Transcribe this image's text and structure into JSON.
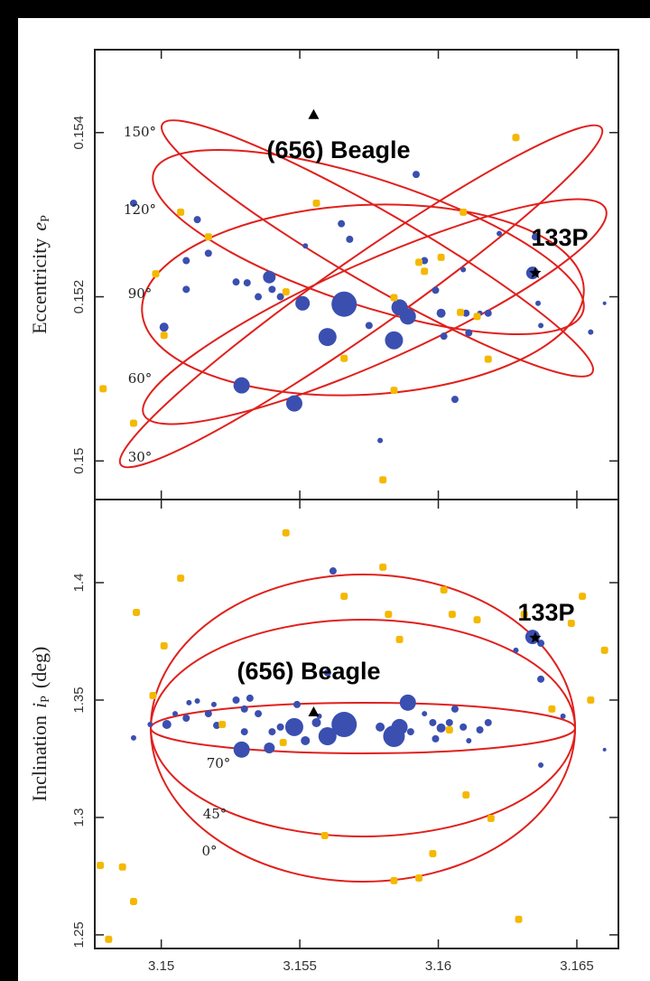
{
  "chart_data": [
    {
      "type": "scatter",
      "xlim": [
        3.1476,
        3.1665
      ],
      "ylim": [
        0.14953,
        0.15501
      ],
      "xticks": [
        3.15,
        3.155,
        3.16,
        3.165
      ],
      "show_xtick_labels": false,
      "yticks": [
        0.15,
        0.152,
        0.154
      ],
      "y_label": [
        "Eccentricity",
        "e",
        "P"
      ],
      "series": [
        {
          "color": "#3a4fb0",
          "x": [
            3.149,
            3.1501,
            3.1509,
            3.1509,
            3.1513,
            3.1517,
            3.1527,
            3.1529,
            3.1531,
            3.1535,
            3.1539,
            3.154,
            3.1543,
            3.1548,
            3.1551,
            3.1552,
            3.156,
            3.1565,
            3.1566,
            3.1568,
            3.1575,
            3.1579,
            3.1584,
            3.1586,
            3.1589,
            3.1592,
            3.1595,
            3.1599,
            3.1601,
            3.1602,
            3.1606,
            3.1609,
            3.161,
            3.1611,
            3.1615,
            3.1618,
            3.1622,
            3.1628,
            3.1634,
            3.1635,
            3.1636,
            3.1637,
            3.1655,
            3.166
          ],
          "values": [
            0.15314,
            0.15163,
            0.15244,
            0.15209,
            0.15294,
            0.15253,
            0.15218,
            0.15092,
            0.15217,
            0.152,
            0.15224,
            0.15209,
            0.152,
            0.1507,
            0.15192,
            0.15262,
            0.15151,
            0.15289,
            0.15191,
            0.1527,
            0.15165,
            0.15025,
            0.15147,
            0.15187,
            0.15176,
            0.15349,
            0.15244,
            0.15208,
            0.1518,
            0.15152,
            0.15075,
            0.15233,
            0.1518,
            0.15156,
            0.1518,
            0.1518,
            0.15277,
            0.15394,
            0.15229,
            0.15273,
            0.15192,
            0.15165,
            0.15157,
            0.15192
          ],
          "sizes": [
            4,
            5,
            4,
            4,
            4,
            4,
            4,
            9,
            4,
            4,
            7,
            4,
            4,
            9,
            8,
            3,
            10,
            4,
            14,
            4,
            4,
            3,
            10,
            9,
            9,
            4,
            4,
            4,
            5,
            4,
            4,
            3,
            4,
            4,
            3,
            4,
            3,
            4,
            7,
            4,
            3,
            3,
            3,
            2
          ]
        },
        {
          "color": "#f5b800",
          "x": [
            3.1479,
            3.149,
            3.1498,
            3.1501,
            3.1507,
            3.1517,
            3.1545,
            3.1556,
            3.1566,
            3.158,
            3.1584,
            3.1584,
            3.1593,
            3.1595,
            3.1601,
            3.1608,
            3.1609,
            3.1614,
            3.1618,
            3.1628
          ],
          "values": [
            0.15088,
            0.15046,
            0.15228,
            0.15153,
            0.15303,
            0.15273,
            0.15206,
            0.15314,
            0.15125,
            0.14977,
            0.15199,
            0.15086,
            0.15242,
            0.15231,
            0.15248,
            0.15181,
            0.15303,
            0.15176,
            0.15124,
            0.15394
          ]
        }
      ],
      "markers": [
        {
          "label": "(656) Beagle",
          "shape": "triangle",
          "x": 3.1555,
          "y": 0.15422
        },
        {
          "label": "133P",
          "shape": "star",
          "x": 3.1635,
          "y": 0.15229
        }
      ],
      "annotations": [
        "150°",
        "120°",
        "90°",
        "60°",
        "30°"
      ]
    },
    {
      "type": "scatter",
      "xlim": [
        3.1476,
        3.1665
      ],
      "ylim": [
        1.2442,
        1.4354
      ],
      "xticks": [
        3.15,
        3.155,
        3.16,
        3.165
      ],
      "show_xtick_labels": true,
      "yticks": [
        1.25,
        1.3,
        1.35,
        1.4
      ],
      "y_label": [
        "Inclination",
        "i",
        "P",
        "(deg)"
      ],
      "series": [
        {
          "color": "#3a4fb0",
          "x": [
            3.149,
            3.1496,
            3.1502,
            3.1505,
            3.1509,
            3.151,
            3.1513,
            3.1517,
            3.1519,
            3.152,
            3.1527,
            3.1529,
            3.153,
            3.153,
            3.1532,
            3.1535,
            3.1539,
            3.154,
            3.1543,
            3.1548,
            3.1549,
            3.1552,
            3.1556,
            3.1557,
            3.156,
            3.1566,
            3.156,
            3.1562,
            3.1566,
            3.1579,
            3.1584,
            3.1586,
            3.1589,
            3.159,
            3.1595,
            3.1598,
            3.1599,
            3.1601,
            3.1604,
            3.1606,
            3.1609,
            3.1611,
            3.1615,
            3.1618,
            3.1628,
            3.1634,
            3.1637,
            3.1637,
            3.1637,
            3.1645,
            3.166
          ],
          "values": [
            1.3339,
            1.3396,
            1.3396,
            1.3442,
            1.3423,
            1.3489,
            1.3496,
            1.3442,
            1.3481,
            1.3392,
            1.35,
            1.3289,
            1.3365,
            1.3462,
            1.3508,
            1.3442,
            1.3296,
            1.3365,
            1.3385,
            1.3385,
            1.3481,
            1.3327,
            1.3404,
            1.3431,
            1.3346,
            1.3396,
            1.3616,
            1.405,
            1.3365,
            1.3385,
            1.3346,
            1.3385,
            1.3489,
            1.3365,
            1.3442,
            1.3404,
            1.3335,
            1.3381,
            1.3404,
            1.3462,
            1.3385,
            1.3327,
            1.3373,
            1.3404,
            1.3712,
            1.3769,
            1.3742,
            1.3589,
            1.3223,
            1.3431,
            1.3289
          ],
          "sizes": [
            3,
            3,
            5,
            3,
            4,
            3,
            3,
            4,
            3,
            4,
            4,
            9,
            4,
            4,
            4,
            4,
            6,
            4,
            4,
            10,
            4,
            5,
            5,
            3,
            10,
            14,
            4,
            4,
            4,
            5,
            12,
            9,
            9,
            4,
            3,
            4,
            4,
            5,
            4,
            4,
            4,
            3,
            4,
            4,
            3,
            8,
            4,
            4,
            3,
            3,
            2
          ]
        },
        {
          "color": "#f5b800",
          "x": [
            3.1478,
            3.1481,
            3.1486,
            3.149,
            3.1491,
            3.1497,
            3.1501,
            3.1507,
            3.1522,
            3.1545,
            3.1544,
            3.1559,
            3.1566,
            3.158,
            3.1582,
            3.1584,
            3.1586,
            3.1593,
            3.1598,
            3.1602,
            3.1604,
            3.1605,
            3.161,
            3.1614,
            3.1619,
            3.1629,
            3.1631,
            3.1648,
            3.1652,
            3.1655,
            3.166,
            3.1641
          ],
          "values": [
            1.2796,
            1.2481,
            1.2789,
            1.2642,
            1.3873,
            1.3519,
            1.3731,
            1.4019,
            1.3396,
            1.4212,
            1.3319,
            1.2923,
            1.3942,
            1.4066,
            1.3865,
            1.2731,
            1.3758,
            1.2742,
            1.2846,
            1.3969,
            1.3373,
            1.3865,
            1.3096,
            1.3842,
            1.2996,
            1.2566,
            1.3865,
            1.3827,
            1.3942,
            1.35,
            1.3712,
            1.3462
          ]
        }
      ],
      "markers": [
        {
          "label": "(656) Beagle",
          "shape": "triangle",
          "x": 3.1555,
          "y": 1.345
        },
        {
          "label": "133P",
          "shape": "star",
          "x": 3.1635,
          "y": 1.3765
        }
      ],
      "annotations": [
        "70°",
        "45°",
        "0°"
      ]
    }
  ]
}
